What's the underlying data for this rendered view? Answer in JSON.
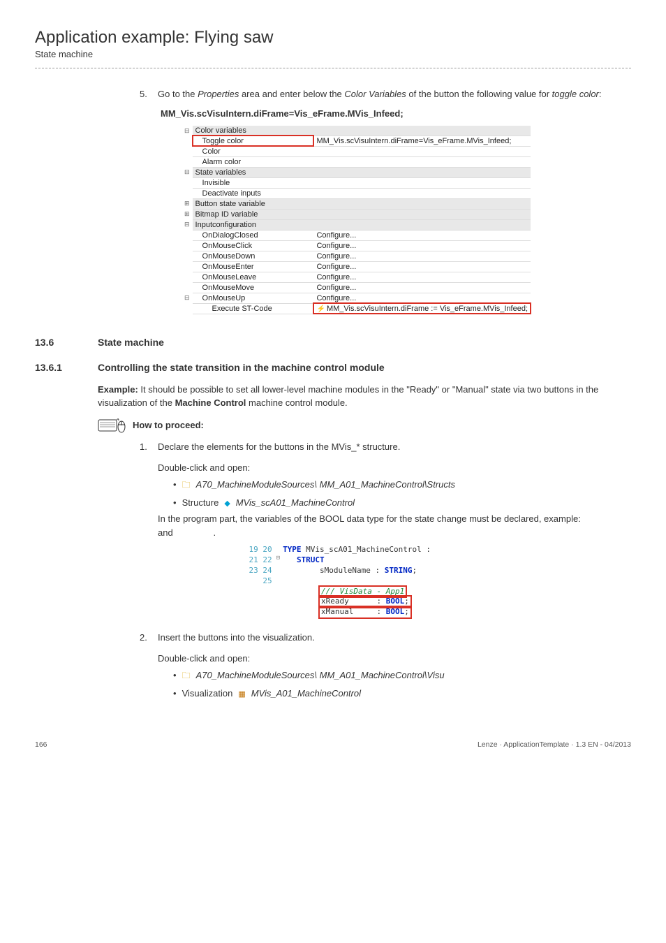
{
  "header": {
    "title": "Application example: Flying saw",
    "subtitle": "State machine"
  },
  "step5": {
    "num": "5.",
    "text_before": "Go to the ",
    "em1": "Properties",
    "text_mid1": " area and enter below the ",
    "em2": "Color Variables",
    "text_mid2": " of the button the following value for ",
    "em3": "toggle color",
    "text_after": ":"
  },
  "code_top": "MM_Vis.scVisuIntern.diFrame=Vis_eFrame.MVis_Infeed;",
  "propgrid": {
    "group_color": "#e8e8e8",
    "border_color": "#dddddd",
    "highlight_color": "#d93025",
    "rows": [
      {
        "type": "group",
        "exp": "−",
        "label": "Color variables",
        "value": ""
      },
      {
        "type": "item",
        "pad": "pad1",
        "label": "Toggle color",
        "value": "MM_Vis.scVisuIntern.diFrame=Vis_eFrame.MVis_Infeed;",
        "highlight": true
      },
      {
        "type": "item",
        "pad": "pad1",
        "label": "Color",
        "value": ""
      },
      {
        "type": "item",
        "pad": "pad1",
        "label": "Alarm color",
        "value": ""
      },
      {
        "type": "group",
        "exp": "−",
        "label": "State variables",
        "value": ""
      },
      {
        "type": "item",
        "pad": "pad1",
        "label": "Invisible",
        "value": ""
      },
      {
        "type": "item",
        "pad": "pad1",
        "label": "Deactivate inputs",
        "value": ""
      },
      {
        "type": "group",
        "exp": "+",
        "label": "Button state variable",
        "value": ""
      },
      {
        "type": "group",
        "exp": "+",
        "label": "Bitmap ID variable",
        "value": ""
      },
      {
        "type": "group",
        "exp": "−",
        "label": "Inputconfiguration",
        "value": ""
      },
      {
        "type": "item",
        "pad": "pad1",
        "label": "OnDialogClosed",
        "value": "Configure..."
      },
      {
        "type": "item",
        "pad": "pad1",
        "label": "OnMouseClick",
        "value": "Configure..."
      },
      {
        "type": "item",
        "pad": "pad1",
        "label": "OnMouseDown",
        "value": "Configure..."
      },
      {
        "type": "item",
        "pad": "pad1",
        "label": "OnMouseEnter",
        "value": "Configure..."
      },
      {
        "type": "item",
        "pad": "pad1",
        "label": "OnMouseLeave",
        "value": "Configure..."
      },
      {
        "type": "item",
        "pad": "pad1",
        "label": "OnMouseMove",
        "value": "Configure..."
      },
      {
        "type": "sub",
        "exp": "−",
        "pad": "pad1",
        "label": "OnMouseUp",
        "value": "Configure..."
      },
      {
        "type": "item",
        "pad": "pad2",
        "label": "Execute ST-Code",
        "value": "MM_Vis.scVisuIntern.diFrame := Vis_eFrame.MVis_Infeed;",
        "highlight": true,
        "lightning": true
      }
    ]
  },
  "sec136": {
    "num": "13.6",
    "title": "State machine"
  },
  "sec1361": {
    "num": "13.6.1",
    "title": "Controlling the state transition in the machine control module"
  },
  "example": {
    "lead": "Example:",
    "text": " It should be possible to set all lower-level machine modules in the \"Ready\" or \"Manual\" state via two buttons in the visualization of the ",
    "bold": "Machine Control",
    "tail": " machine control module."
  },
  "howto": "How to proceed:",
  "step1": {
    "num": "1.",
    "text": "Declare the elements for the buttons in the MVis_* structure.",
    "open": "Double-click and open:",
    "bullet1": "A70_MachineModuleSources\\ MM_A01_MachineControl\\Structs",
    "bullet2_prefix": "Structure  ",
    "bullet2": "MVis_scA01_MachineControl",
    "para": "In the program part, the variables of the BOOL data type for the state change must be declared, example:                          and                ."
  },
  "editor": {
    "line_numbers": [
      "19",
      "20",
      "21",
      "22",
      "23",
      "24",
      "25"
    ],
    "type_kw": "TYPE",
    "type_name": " MVis_scA01_MachineControl :",
    "struct_kw": "STRUCT",
    "modline_pre": "        sModuleName : ",
    "string_kw": "STRING",
    "modline_post": ";",
    "comment": "/// VisData - App1",
    "xready": "xReady",
    "xmanual": "xManual",
    "colon": "      : ",
    "bool_kw": "BOOL",
    "semi": ";"
  },
  "step2": {
    "num": "2.",
    "text": "Insert the buttons into the visualization.",
    "open": "Double-click and open:",
    "bullet1": "A70_MachineModuleSources\\ MM_A01_MachineControl\\Visu",
    "bullet2_prefix": "Visualization ",
    "bullet2": "MVis_A01_MachineControl"
  },
  "footer": {
    "page": "166",
    "right": "Lenze · ApplicationTemplate · 1.3 EN - 04/2013"
  }
}
